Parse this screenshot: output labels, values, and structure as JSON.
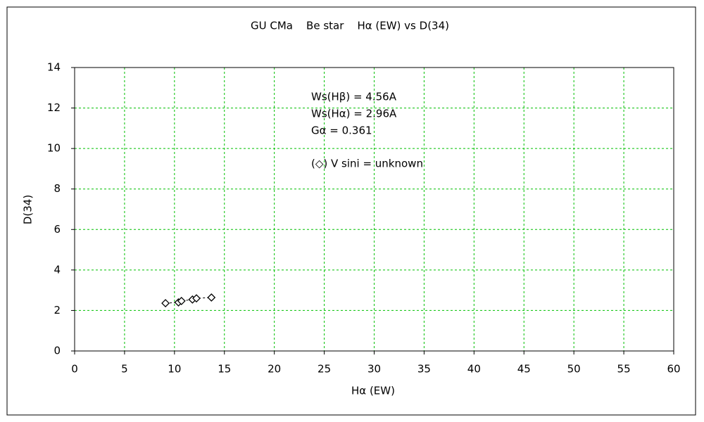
{
  "chart_data": {
    "type": "scatter",
    "title": "GU CMa    Be star    Hα (EW) vs D(34)",
    "x_label": "Hα (EW)",
    "y_label": "D(34)",
    "annotations": [
      "Ws(Hβ) = 4.56A",
      "Ws(Hα) = 2.96A",
      "Gα = 0.361",
      "(◇) V sini = unknown"
    ],
    "series": [
      {
        "name": "GU CMa",
        "color": "#000000",
        "line_style": "dashed",
        "x": [
          9.1,
          10.4,
          10.7,
          11.8,
          12.2,
          13.7
        ],
        "values": [
          2.36,
          2.4,
          2.47,
          2.54,
          2.6,
          2.64
        ]
      }
    ],
    "xlim": [
      0,
      60
    ],
    "xticks": [
      0,
      5,
      10,
      15,
      20,
      25,
      30,
      35,
      40,
      45,
      50,
      55,
      60
    ],
    "ylim": [
      0,
      14
    ],
    "yticks": [
      0,
      2,
      4,
      6,
      8,
      10,
      12,
      14
    ],
    "grid": true,
    "grid_color": "#00c000"
  }
}
